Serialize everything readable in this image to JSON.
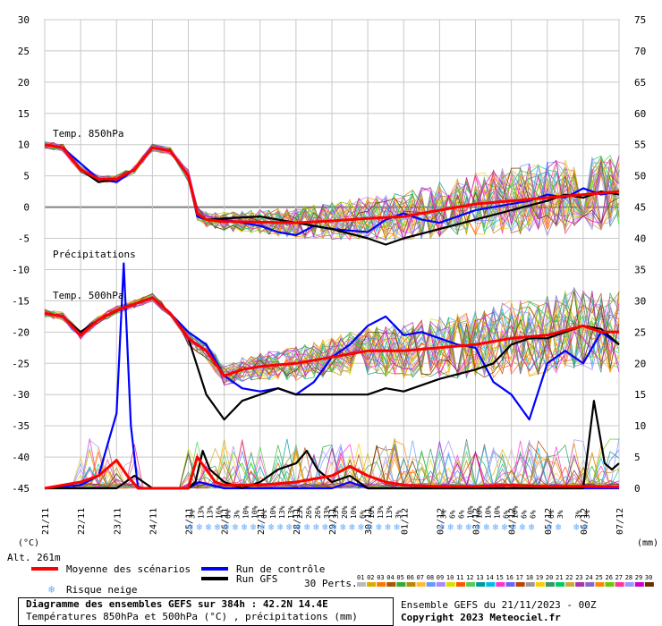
{
  "chart_data": {
    "type": "line",
    "left_axis": {
      "label": "(°C)",
      "ticks": [
        30,
        25,
        20,
        15,
        10,
        5,
        0,
        -5,
        -10,
        -15,
        -20,
        -25,
        -30,
        -35,
        -40,
        -45
      ],
      "ylim": [
        -45,
        30
      ]
    },
    "right_axis": {
      "label": "(mm)",
      "ticks": [
        75,
        70,
        65,
        60,
        55,
        50,
        45,
        40,
        35,
        30,
        25,
        20,
        15,
        10,
        5,
        0
      ],
      "ylim": [
        0,
        75
      ]
    },
    "x_ticks": [
      "21/11",
      "22/11",
      "23/11",
      "24/11",
      "25/11",
      "26/11",
      "27/11",
      "28/11",
      "29/11",
      "30/11",
      "01/12",
      "02/12",
      "03/12",
      "04/12",
      "05/12",
      "06/12",
      "07/12"
    ],
    "x_days": [
      0,
      16
    ],
    "grid": true,
    "annotations": {
      "t850": "Temp. 850hPa",
      "precip": "Précipitations",
      "t500": "Temp. 500hPa",
      "altitude": "Alt. 261m"
    },
    "series": [
      {
        "name": "Moyenne des scénarios",
        "color": "#ff0000",
        "t850": [
          [
            0,
            10
          ],
          [
            0.5,
            9.5
          ],
          [
            1,
            6
          ],
          [
            1.5,
            4.5
          ],
          [
            2,
            4.5
          ],
          [
            2.5,
            6
          ],
          [
            3,
            9.5
          ],
          [
            3.5,
            9
          ],
          [
            4,
            5
          ],
          [
            4.25,
            -1
          ],
          [
            4.5,
            -2
          ],
          [
            5,
            -2.3
          ],
          [
            6,
            -2.4
          ],
          [
            7,
            -2.5
          ],
          [
            8,
            -2.2
          ],
          [
            9,
            -1.8
          ],
          [
            10,
            -1.5
          ],
          [
            11,
            -0.5
          ],
          [
            12,
            0.5
          ],
          [
            13,
            1
          ],
          [
            14,
            1.5
          ],
          [
            15,
            2
          ],
          [
            16,
            2.5
          ]
        ],
        "t500": [
          [
            0,
            -17
          ],
          [
            0.5,
            -17.5
          ],
          [
            1,
            -20.5
          ],
          [
            1.5,
            -18
          ],
          [
            2,
            -16.5
          ],
          [
            2.5,
            -15.5
          ],
          [
            3,
            -14.5
          ],
          [
            3.5,
            -17
          ],
          [
            4,
            -21
          ],
          [
            4.5,
            -23
          ],
          [
            5,
            -27
          ],
          [
            5.5,
            -26
          ],
          [
            6,
            -25.5
          ],
          [
            7,
            -25
          ],
          [
            8,
            -24
          ],
          [
            9,
            -23
          ],
          [
            10,
            -23
          ],
          [
            11,
            -22.5
          ],
          [
            12,
            -22
          ],
          [
            13,
            -21
          ],
          [
            14,
            -20.5
          ],
          [
            15,
            -19
          ],
          [
            15.5,
            -20
          ],
          [
            16,
            -20
          ]
        ],
        "precip": [
          [
            0,
            0
          ],
          [
            0.5,
            0.5
          ],
          [
            1,
            1
          ],
          [
            1.5,
            2
          ],
          [
            2,
            4.5
          ],
          [
            2.3,
            2
          ],
          [
            2.6,
            0
          ],
          [
            3.5,
            0
          ],
          [
            4,
            0
          ],
          [
            4.25,
            5
          ],
          [
            4.5,
            3
          ],
          [
            4.75,
            1
          ],
          [
            5,
            0.5
          ],
          [
            6,
            0.5
          ],
          [
            7,
            1
          ],
          [
            8,
            2
          ],
          [
            8.5,
            3.5
          ],
          [
            9,
            2
          ],
          [
            9.5,
            1
          ],
          [
            10,
            0.5
          ],
          [
            11,
            0.3
          ],
          [
            12,
            0.3
          ],
          [
            13,
            0.5
          ],
          [
            14,
            0.3
          ],
          [
            15,
            0.3
          ],
          [
            16,
            0.2
          ]
        ]
      },
      {
        "name": "Run de contrôle",
        "color": "#0000ff",
        "t850": [
          [
            0,
            10
          ],
          [
            0.5,
            9.5
          ],
          [
            1,
            7
          ],
          [
            1.5,
            4.5
          ],
          [
            2,
            4
          ],
          [
            2.5,
            6
          ],
          [
            3,
            9.5
          ],
          [
            3.5,
            9
          ],
          [
            4,
            5
          ],
          [
            4.25,
            -1.5
          ],
          [
            4.5,
            -2
          ],
          [
            5,
            -2
          ],
          [
            6,
            -3
          ],
          [
            6.5,
            -4
          ],
          [
            7,
            -4.5
          ],
          [
            7.5,
            -3
          ],
          [
            8,
            -3.5
          ],
          [
            9,
            -4
          ],
          [
            9.5,
            -2
          ],
          [
            10,
            -1
          ],
          [
            10.5,
            -2
          ],
          [
            11,
            -2.5
          ],
          [
            11.5,
            -1.5
          ],
          [
            12,
            -0.5
          ],
          [
            12.5,
            0
          ],
          [
            13,
            0.5
          ],
          [
            13.5,
            1
          ],
          [
            14,
            2
          ],
          [
            14.5,
            1.5
          ],
          [
            15,
            3
          ],
          [
            15.5,
            2
          ],
          [
            16,
            2.5
          ]
        ],
        "t500": [
          [
            0,
            -17
          ],
          [
            0.5,
            -17.5
          ],
          [
            1,
            -20
          ],
          [
            1.5,
            -18
          ],
          [
            2,
            -16.5
          ],
          [
            2.5,
            -15.5
          ],
          [
            3,
            -14.5
          ],
          [
            3.5,
            -17
          ],
          [
            4,
            -20
          ],
          [
            4.5,
            -22
          ],
          [
            5,
            -27
          ],
          [
            5.5,
            -29
          ],
          [
            6,
            -29.5
          ],
          [
            6.5,
            -29
          ],
          [
            7,
            -30
          ],
          [
            7.5,
            -28
          ],
          [
            8,
            -24
          ],
          [
            8.5,
            -22
          ],
          [
            9,
            -19
          ],
          [
            9.5,
            -17.5
          ],
          [
            10,
            -20.5
          ],
          [
            10.5,
            -20
          ],
          [
            11,
            -21
          ],
          [
            11.5,
            -22
          ],
          [
            12,
            -22.5
          ],
          [
            12.5,
            -28
          ],
          [
            13,
            -30
          ],
          [
            13.5,
            -34
          ],
          [
            14,
            -25
          ],
          [
            14.5,
            -23
          ],
          [
            15,
            -25
          ],
          [
            15.5,
            -20
          ],
          [
            16,
            -22
          ]
        ],
        "precip": [
          [
            0,
            0
          ],
          [
            1,
            0.5
          ],
          [
            1.5,
            2
          ],
          [
            2,
            12
          ],
          [
            2.2,
            36
          ],
          [
            2.4,
            10
          ],
          [
            2.6,
            0
          ],
          [
            4,
            0
          ],
          [
            4.3,
            1
          ],
          [
            5,
            0
          ],
          [
            8,
            0
          ],
          [
            8.5,
            1
          ],
          [
            9,
            0
          ],
          [
            16,
            0
          ]
        ]
      },
      {
        "name": "Run GFS",
        "color": "#000000",
        "t850": [
          [
            0,
            10
          ],
          [
            0.5,
            9.5
          ],
          [
            1,
            6
          ],
          [
            1.5,
            4
          ],
          [
            2,
            4.5
          ],
          [
            2.5,
            6
          ],
          [
            3,
            9.5
          ],
          [
            3.5,
            9
          ],
          [
            4,
            5
          ],
          [
            4.25,
            -1
          ],
          [
            4.5,
            -2
          ],
          [
            5,
            -1.8
          ],
          [
            6,
            -1.5
          ],
          [
            7,
            -2.5
          ],
          [
            8,
            -3.5
          ],
          [
            9,
            -5
          ],
          [
            9.5,
            -6
          ],
          [
            10,
            -5
          ],
          [
            11,
            -3.5
          ],
          [
            12,
            -2
          ],
          [
            13,
            -0.5
          ],
          [
            14,
            1
          ],
          [
            14.5,
            2
          ],
          [
            15,
            1.5
          ],
          [
            15.5,
            2.5
          ],
          [
            16,
            2
          ]
        ],
        "t500": [
          [
            0,
            -17
          ],
          [
            0.5,
            -17.5
          ],
          [
            1,
            -20
          ],
          [
            1.5,
            -18
          ],
          [
            2,
            -16.5
          ],
          [
            2.5,
            -15.5
          ],
          [
            3,
            -14.5
          ],
          [
            3.5,
            -17
          ],
          [
            4,
            -21
          ],
          [
            4.5,
            -30
          ],
          [
            5,
            -34
          ],
          [
            5.5,
            -31
          ],
          [
            6,
            -30
          ],
          [
            6.5,
            -29
          ],
          [
            7,
            -30
          ],
          [
            8,
            -30
          ],
          [
            9,
            -30
          ],
          [
            9.5,
            -29
          ],
          [
            10,
            -29.5
          ],
          [
            11,
            -27.5
          ],
          [
            12,
            -26
          ],
          [
            12.5,
            -25
          ],
          [
            13,
            -22
          ],
          [
            13.5,
            -21
          ],
          [
            14,
            -21
          ],
          [
            14.5,
            -20
          ],
          [
            15,
            -19
          ],
          [
            15.5,
            -19.5
          ],
          [
            16,
            -22
          ]
        ],
        "precip": [
          [
            0,
            0
          ],
          [
            2,
            0
          ],
          [
            2.5,
            2
          ],
          [
            3,
            0
          ],
          [
            4,
            0
          ],
          [
            4.2,
            1
          ],
          [
            4.4,
            6
          ],
          [
            4.6,
            3
          ],
          [
            5,
            1
          ],
          [
            5.5,
            0
          ],
          [
            6,
            1
          ],
          [
            6.5,
            3
          ],
          [
            7,
            4
          ],
          [
            7.3,
            6
          ],
          [
            7.6,
            3
          ],
          [
            8,
            1
          ],
          [
            8.5,
            2
          ],
          [
            9,
            0
          ],
          [
            10,
            0
          ],
          [
            11,
            0
          ],
          [
            12,
            0
          ],
          [
            13,
            0
          ],
          [
            14,
            0
          ],
          [
            15,
            0
          ],
          [
            15.3,
            14
          ],
          [
            15.6,
            4
          ],
          [
            15.8,
            3
          ],
          [
            16,
            4
          ]
        ]
      }
    ],
    "risque_neige": [
      {
        "day": 4.1,
        "pct": "3%"
      },
      {
        "day": 4.35,
        "pct": "13%"
      },
      {
        "day": 4.6,
        "pct": "13%"
      },
      {
        "day": 4.85,
        "pct": "16%"
      },
      {
        "day": 5.1,
        "pct": "6%"
      },
      {
        "day": 5.35,
        "pct": "3%"
      },
      {
        "day": 5.6,
        "pct": "10%"
      },
      {
        "day": 5.85,
        "pct": "10%"
      },
      {
        "day": 6.1,
        "pct": "6%"
      },
      {
        "day": 6.35,
        "pct": "10%"
      },
      {
        "day": 6.6,
        "pct": "13%"
      },
      {
        "day": 6.85,
        "pct": "13%"
      },
      {
        "day": 7.1,
        "pct": "23%"
      },
      {
        "day": 7.35,
        "pct": "26%"
      },
      {
        "day": 7.6,
        "pct": "26%"
      },
      {
        "day": 7.85,
        "pct": "33%"
      },
      {
        "day": 8.1,
        "pct": "33%"
      },
      {
        "day": 8.35,
        "pct": "20%"
      },
      {
        "day": 8.6,
        "pct": "10%"
      },
      {
        "day": 8.85,
        "pct": "6%"
      },
      {
        "day": 9.1,
        "pct": "10%"
      },
      {
        "day": 9.35,
        "pct": "13%"
      },
      {
        "day": 9.6,
        "pct": "13%"
      },
      {
        "day": 9.85,
        "pct": "3%"
      },
      {
        "day": 11.1,
        "pct": "3%"
      },
      {
        "day": 11.35,
        "pct": "6%"
      },
      {
        "day": 11.6,
        "pct": "6%"
      },
      {
        "day": 11.85,
        "pct": "10%"
      },
      {
        "day": 12.1,
        "pct": "10%"
      },
      {
        "day": 12.35,
        "pct": "10%"
      },
      {
        "day": 12.6,
        "pct": "10%"
      },
      {
        "day": 12.85,
        "pct": "6%"
      },
      {
        "day": 13.1,
        "pct": "10%"
      },
      {
        "day": 13.35,
        "pct": "6%"
      },
      {
        "day": 13.6,
        "pct": "6%"
      },
      {
        "day": 14.1,
        "pct": "6%"
      },
      {
        "day": 14.35,
        "pct": "3%"
      },
      {
        "day": 14.85,
        "pct": "3%"
      },
      {
        "day": 15.1,
        "pct": "3%"
      }
    ],
    "perturbation_colors": [
      "#bbbbbb",
      "#ddaa00",
      "#ff7700",
      "#aa5500",
      "#33aa33",
      "#bb8800",
      "#ffbb33",
      "#6699ff",
      "#aa88ff",
      "#dddd00",
      "#ff5500",
      "#55cc55",
      "#009999",
      "#00bbee",
      "#ff33cc",
      "#6666ff",
      "#bb4400",
      "#999999",
      "#ffcc00",
      "#339966",
      "#00cc66",
      "#ccaa33",
      "#aa33aa",
      "#8866cc",
      "#ff8800",
      "#66cc00",
      "#ff3399",
      "#9999ff",
      "#cc00cc",
      "#663300"
    ]
  },
  "legend": {
    "moyenne": "Moyenne des scénarios",
    "controle": "Run de contrôle",
    "gfs": "Run GFS",
    "risque_neige": "Risque neige",
    "perts_label": "30 Perts.",
    "perts_numbers": [
      "01",
      "02",
      "03",
      "04",
      "05",
      "06",
      "07",
      "08",
      "09",
      "10",
      "11",
      "12",
      "13",
      "14",
      "15",
      "16",
      "17",
      "18",
      "19",
      "20",
      "21",
      "22",
      "23",
      "24",
      "25",
      "26",
      "27",
      "28",
      "29",
      "30"
    ]
  },
  "footer": {
    "title": "Diagramme des ensembles GEFS sur 384h : 42.2N 14.4E",
    "subtitle": "Températures 850hPa et 500hPa (°C) , précipitations (mm)",
    "run": "Ensemble GEFS du 21/11/2023 - 00Z",
    "copyright": "Copyright 2023 Meteociel.fr"
  },
  "colors": {
    "mean": "#ff0000",
    "control": "#0000ff",
    "gfs": "#000000",
    "snow": "#66aaff",
    "grid": "#c8c8c8",
    "zero_line": "#808080"
  }
}
